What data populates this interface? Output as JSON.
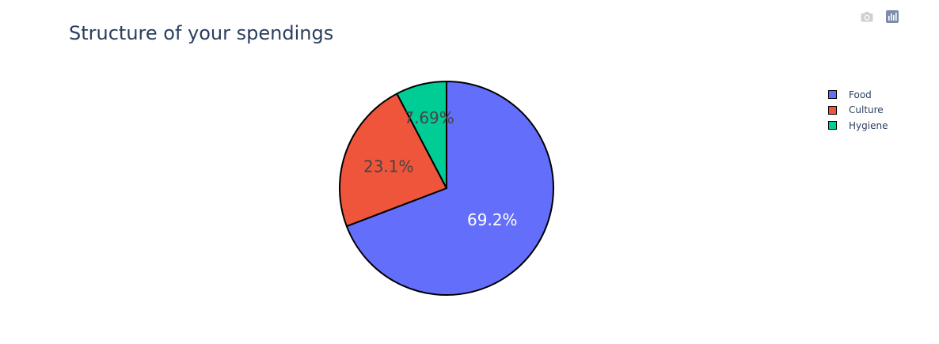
{
  "toolbar": {
    "camera_icon": "camera-icon",
    "plotly_logo": "plotly-logo-icon"
  },
  "chart_data": {
    "type": "pie",
    "title": "Structure of your spendings",
    "categories": [
      "Food",
      "Culture",
      "Hygiene"
    ],
    "values": [
      69.2,
      23.1,
      7.69
    ],
    "labels_text": [
      "69.2%",
      "23.1%",
      "7.69%"
    ],
    "colors": [
      "#636efa",
      "#ef553b",
      "#00cc96"
    ],
    "text_colors": [
      "#ffffff",
      "#444444",
      "#444444"
    ],
    "legend_position": "top-right",
    "direction": "clockwise",
    "start_angle": "top"
  }
}
